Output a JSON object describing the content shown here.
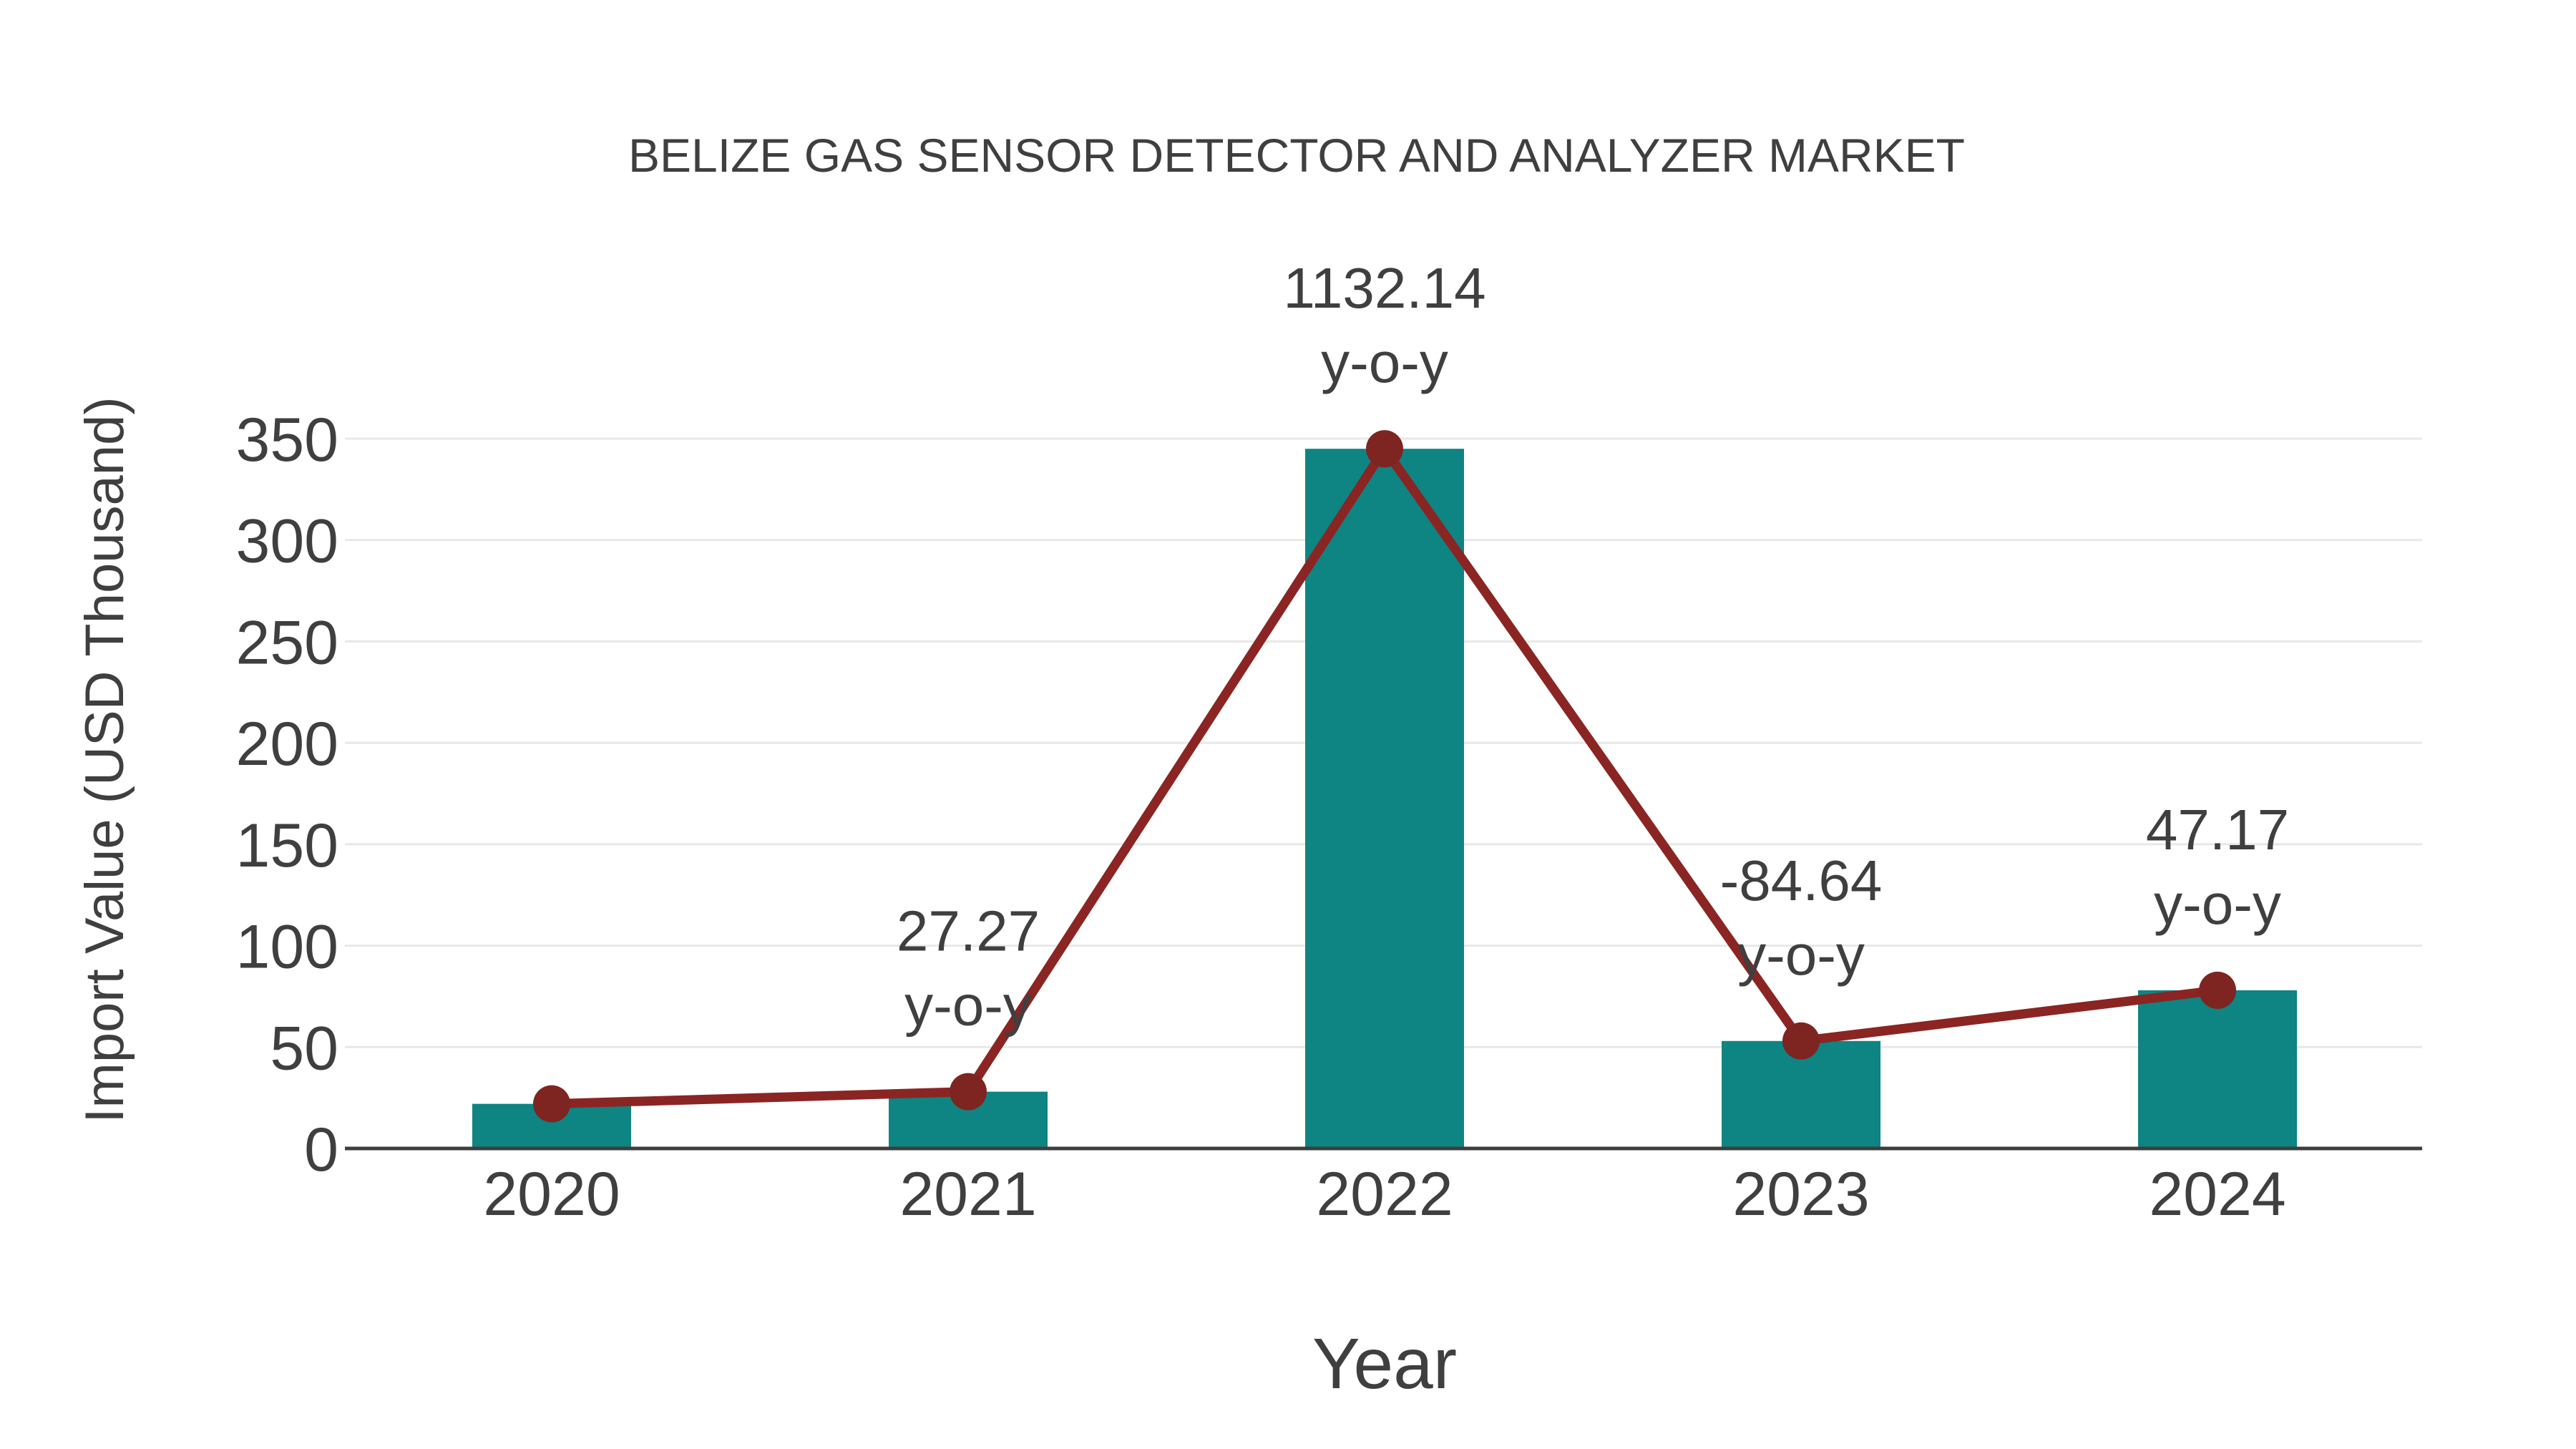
{
  "chart_data": {
    "type": "bar",
    "overlay": "line",
    "title": "BELIZE GAS SENSOR DETECTOR AND ANALYZER MARKET",
    "xlabel": "Year",
    "ylabel": "Import Value (USD Thousand)",
    "categories": [
      "2020",
      "2021",
      "2022",
      "2023",
      "2024"
    ],
    "series": [
      {
        "name": "import-value-bars",
        "type": "bar",
        "values": [
          22,
          28,
          345,
          53,
          78
        ]
      },
      {
        "name": "import-value-trend",
        "type": "line",
        "values": [
          22,
          28,
          345,
          53,
          78
        ]
      }
    ],
    "annotations": [
      {
        "category": "2021",
        "label": "27.27",
        "sublabel": "y-o-y"
      },
      {
        "category": "2022",
        "label": "1132.14",
        "sublabel": "y-o-y"
      },
      {
        "category": "2023",
        "label": "-84.64",
        "sublabel": "y-o-y"
      },
      {
        "category": "2024",
        "label": "47.17",
        "sublabel": "y-o-y"
      }
    ],
    "yticks": [
      0,
      50,
      100,
      150,
      200,
      250,
      300,
      350
    ],
    "ylim": [
      0,
      350
    ],
    "grid": "horizontal",
    "legend": "none",
    "colors": {
      "bar": "#0e8483",
      "line": "#8a2523",
      "marker": "#7e2421",
      "text": "#3f3f3f",
      "grid": "#e8e8e8",
      "axis": "#3d3d3d"
    }
  }
}
